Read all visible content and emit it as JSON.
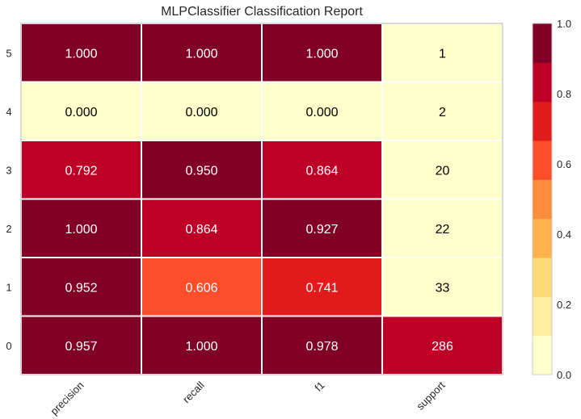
{
  "chart_data": {
    "type": "heatmap",
    "title": "MLPClassifier Classification Report",
    "columns": [
      "precision",
      "recall",
      "f1",
      "support"
    ],
    "rows": [
      "5",
      "4",
      "3",
      "2",
      "1",
      "0"
    ],
    "values": [
      [
        1.0,
        1.0,
        1.0,
        1
      ],
      [
        0.0,
        0.0,
        0.0,
        2
      ],
      [
        0.792,
        0.95,
        0.864,
        20
      ],
      [
        1.0,
        0.864,
        0.927,
        22
      ],
      [
        0.952,
        0.606,
        0.741,
        33
      ],
      [
        0.957,
        1.0,
        0.978,
        286
      ]
    ],
    "labels": [
      [
        "1.000",
        "1.000",
        "1.000",
        "1"
      ],
      [
        "0.000",
        "0.000",
        "0.000",
        "2"
      ],
      [
        "0.792",
        "0.950",
        "0.864",
        "20"
      ],
      [
        "1.000",
        "0.864",
        "0.927",
        "22"
      ],
      [
        "0.952",
        "0.606",
        "0.741",
        "33"
      ],
      [
        "0.957",
        "1.000",
        "0.978",
        "286"
      ]
    ],
    "support_color_value": [
      0.0,
      0.0,
      0.0,
      0.0,
      0.0,
      0.85
    ],
    "colorbar": {
      "range": [
        0.0,
        1.0
      ],
      "ticks": [
        "0.0",
        "0.2",
        "0.4",
        "0.6",
        "0.8",
        "1.0"
      ],
      "colors": [
        "#ffffcc",
        "#ffeda0",
        "#fed976",
        "#feb24c",
        "#fd8d3c",
        "#fc4e2a",
        "#e31a1c",
        "#bd0026",
        "#800026"
      ]
    },
    "grid": true
  }
}
